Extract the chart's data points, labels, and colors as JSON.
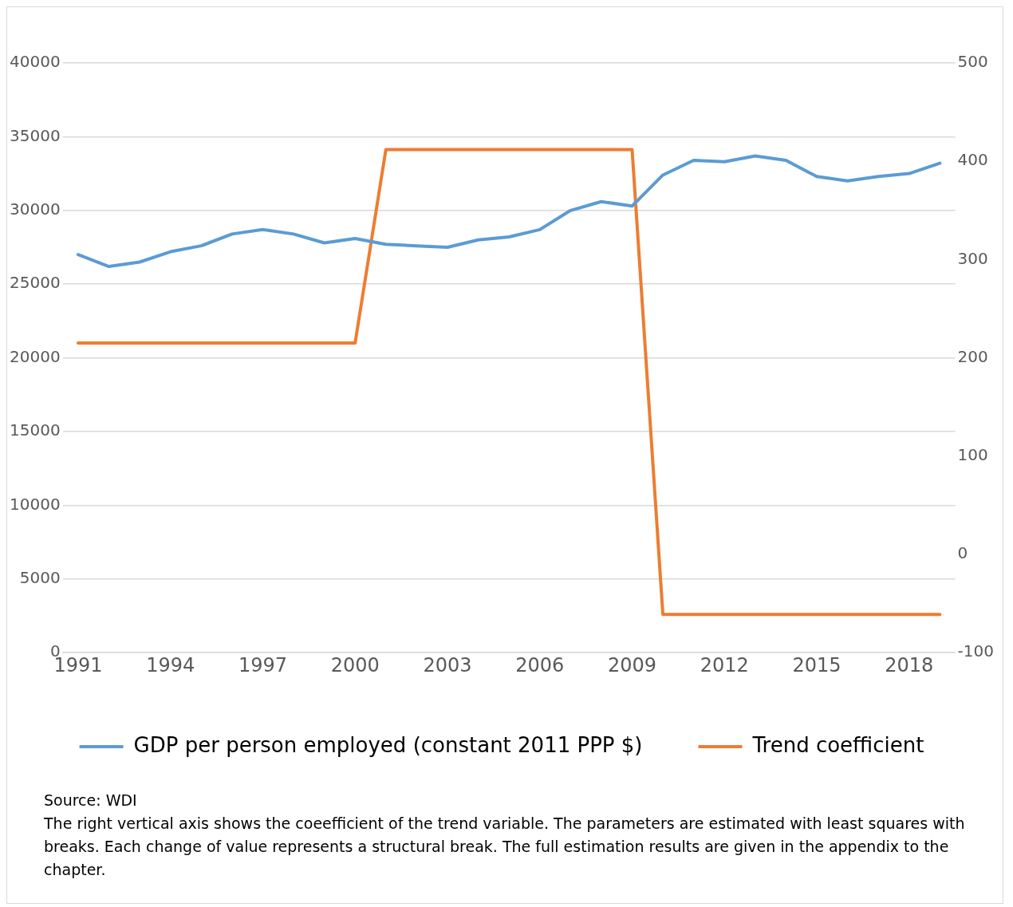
{
  "chart_data": {
    "type": "line",
    "categories": [
      "1991",
      null,
      null,
      "1994",
      null,
      null,
      "1997",
      null,
      null,
      "2000",
      null,
      null,
      "2003",
      null,
      null,
      "2006",
      null,
      null,
      "2009",
      null,
      null,
      "2012",
      null,
      null,
      "2015",
      null,
      null,
      "2018",
      null
    ],
    "series": [
      {
        "name": "GDP per person employed (constant 2011 PPP $)",
        "color": "#5b9bd5",
        "values": [
          27000,
          26200,
          26500,
          27200,
          27600,
          28400,
          28700,
          28400,
          27800,
          28100,
          27700,
          27600,
          27500,
          28000,
          28200,
          28700,
          30000,
          30600,
          30300,
          32400,
          33400,
          33300,
          33700,
          33400,
          32300,
          32000,
          32300,
          32500,
          33200
        ]
      },
      {
        "name": "Trend coefficient",
        "color": "#ed7d31",
        "axis": "y2",
        "values": [
          215,
          215,
          215,
          215,
          215,
          215,
          215,
          215,
          215,
          215,
          412,
          412,
          412,
          412,
          412,
          412,
          412,
          412,
          412,
          -61,
          -61,
          -61,
          -61,
          -61,
          -61,
          -61,
          -61,
          -61,
          -61
        ]
      }
    ],
    "ylim": [
      0,
      40000
    ],
    "yticks": [
      0,
      5000,
      10000,
      15000,
      20000,
      25000,
      30000,
      35000,
      40000
    ],
    "y2lim": [
      -100,
      500
    ],
    "y2ticks": [
      -100,
      0,
      100,
      200,
      300,
      400,
      500
    ],
    "grid": "y",
    "legend": "bottom",
    "marker": "none",
    "line_style": "solid",
    "annotations": [
      "Source: WDI",
      "The right vertical axis shows the coeefficient of the trend variable. The parameters are estimated with least squares with breaks. Each change of value represents a structural break. The full estimation results are given in the appendix to the chapter."
    ]
  }
}
